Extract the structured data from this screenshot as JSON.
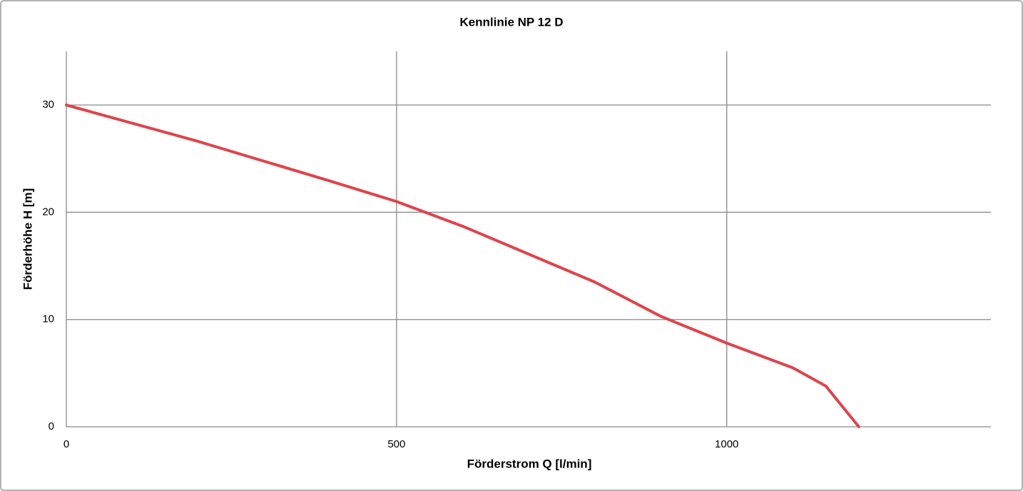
{
  "chart_data": {
    "type": "line",
    "title": "Kennlinie NP 12 D",
    "x_label": "Förderstrom Q [l/min]",
    "y_label": "Förderhöhe H [m]",
    "series": [
      {
        "name": "NP 12 D",
        "color": "#e0434b",
        "x": [
          0,
          200,
          400,
          500,
          600,
          800,
          900,
          1000,
          1100,
          1150,
          1200
        ],
        "values": [
          30,
          26.6,
          22.9,
          21,
          18.7,
          13.5,
          10.3,
          7.8,
          5.5,
          3.8,
          0
        ]
      }
    ],
    "xlim": [
      0,
      1400
    ],
    "xticks": [
      0,
      500,
      1000
    ],
    "ylim": [
      0,
      35
    ],
    "yticks": [
      0,
      10,
      20,
      30
    ],
    "grid": true
  }
}
